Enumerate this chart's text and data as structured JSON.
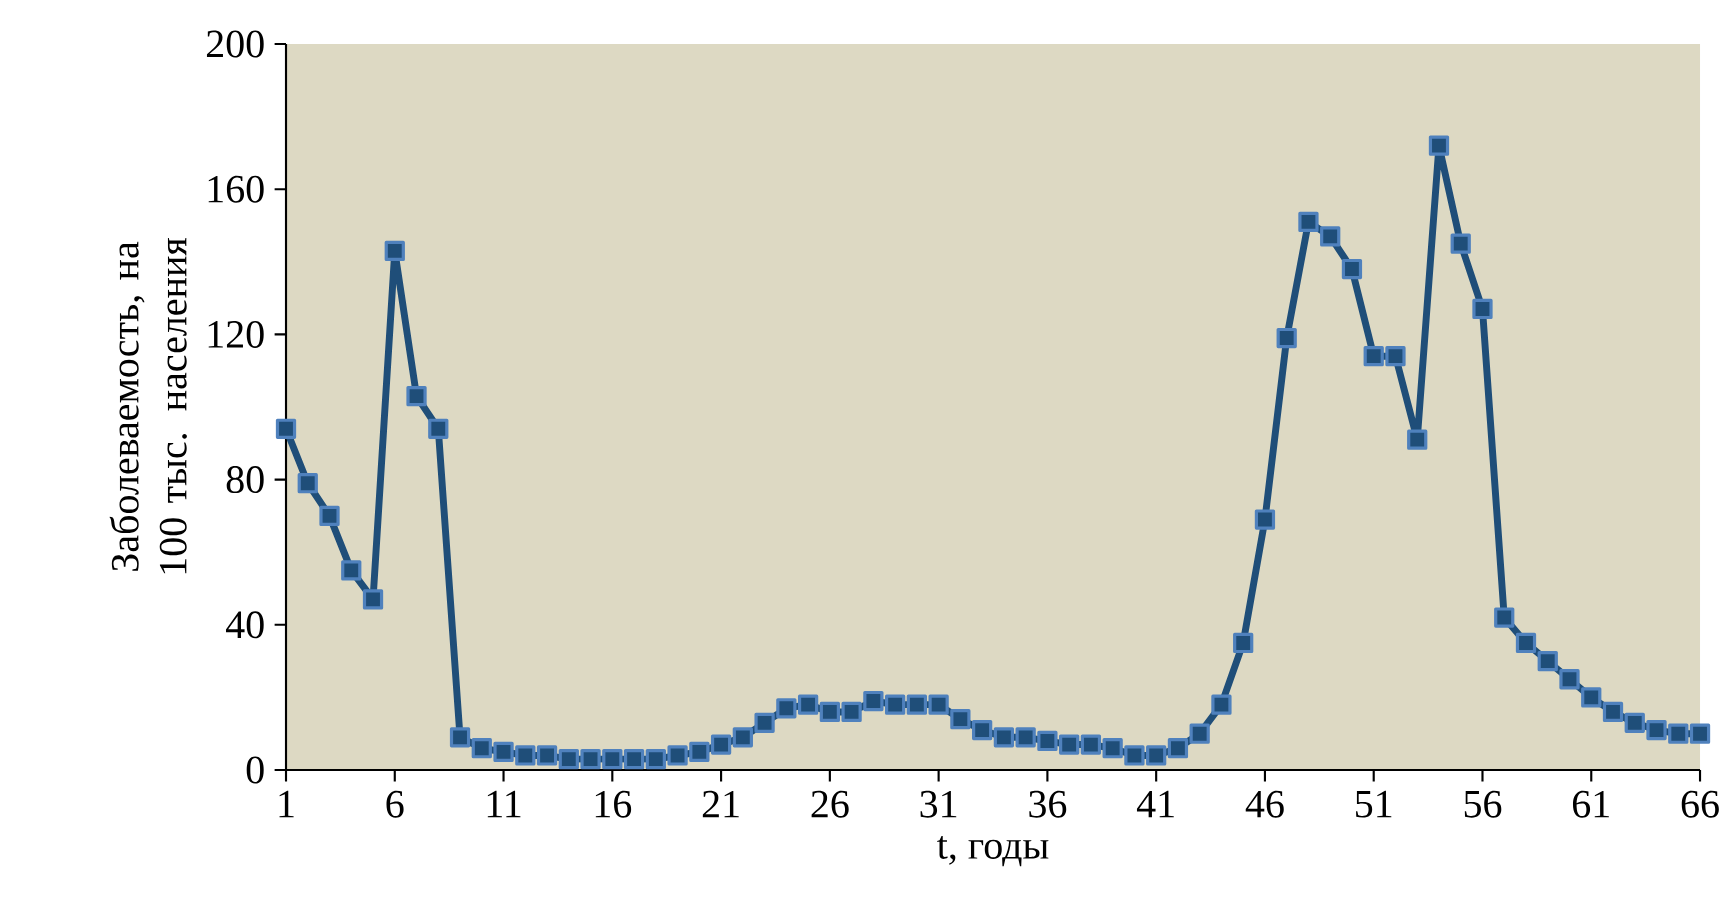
{
  "chart_data": {
    "type": "line",
    "xlabel": "t, годы",
    "ylabel": "Заболеваемость, на 100 тыс. населения",
    "x": [
      1,
      2,
      3,
      4,
      5,
      6,
      7,
      8,
      9,
      10,
      11,
      12,
      13,
      14,
      15,
      16,
      17,
      18,
      19,
      20,
      21,
      22,
      23,
      24,
      25,
      26,
      27,
      28,
      29,
      30,
      31,
      32,
      33,
      34,
      35,
      36,
      37,
      38,
      39,
      40,
      41,
      42,
      43,
      44,
      45,
      46,
      47,
      48,
      49,
      50,
      51,
      52,
      53,
      54,
      55,
      56,
      57,
      58,
      59,
      60,
      61,
      62,
      63,
      64,
      65,
      66
    ],
    "series": [
      {
        "color": "#1f4e79",
        "values": [
          94,
          79,
          70,
          55,
          47,
          143,
          103,
          94,
          9,
          6,
          5,
          4,
          4,
          3,
          3,
          3,
          3,
          3,
          4,
          5,
          7,
          9,
          13,
          17,
          18,
          16,
          16,
          19,
          18,
          18,
          18,
          14,
          11,
          9,
          9,
          8,
          7,
          7,
          6,
          4,
          4,
          6,
          10,
          18,
          35,
          69,
          119,
          151,
          147,
          138,
          114,
          114,
          91,
          172,
          145,
          127,
          42,
          35,
          30,
          25,
          20,
          16,
          13,
          11,
          10,
          10
        ]
      }
    ],
    "xlim": [
      1,
      66
    ],
    "xticks": [
      1,
      6,
      11,
      16,
      21,
      26,
      31,
      36,
      41,
      46,
      51,
      56,
      61,
      66
    ],
    "ylim": [
      0,
      200
    ],
    "yticks": [
      0,
      40,
      80,
      120,
      160,
      200
    ],
    "marker": "square",
    "line_style": "solid",
    "grid": false
  }
}
